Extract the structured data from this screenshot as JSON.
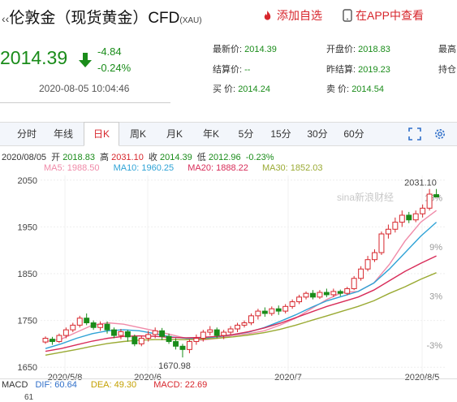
{
  "title": {
    "name": "伦敦金（现货黄金）CFD",
    "code": "(XAU)"
  },
  "actions": {
    "add_watch": "添加自选",
    "app_view": "在APP中查看"
  },
  "quote": {
    "price": "2014.39",
    "change": "-4.84",
    "change_pct": "-0.24%",
    "time": "2020-08-05 10:04:46"
  },
  "fields": {
    "latest_label": "最新价:",
    "latest_value": "2014.39",
    "open_label": "开盘价:",
    "open_value": "2018.83",
    "high_label": "最高",
    "settle_label": "结算价:",
    "settle_value": "--",
    "prev_settle_label": "昨结算:",
    "prev_settle_value": "2019.23",
    "hold_label": "持仓",
    "buy_label": "买  价:",
    "buy_value": "2014.24",
    "sell_label": "卖  价:",
    "sell_value": "2014.54"
  },
  "tabs": [
    "分时",
    "年线",
    "日K",
    "周K",
    "月K",
    "年K",
    "5分",
    "15分",
    "30分",
    "60分"
  ],
  "active_tab": "日K",
  "ohlc": {
    "date": "2020/08/05",
    "open_label": "开",
    "open": "2018.83",
    "high_label": "高",
    "high": "2031.10",
    "close_label": "收",
    "close": "2014.39",
    "low_label": "低",
    "low": "2012.96",
    "change": "-0.23%"
  },
  "ma": {
    "ma5": "MA5: 1988.50",
    "ma10": "MA10: 1960.25",
    "ma20": "MA20: 1888.22",
    "ma30": "MA30: 1852.03"
  },
  "watermark": "sina新浪财经",
  "macd": {
    "label": "MACD",
    "dif": "DIF: 60.64",
    "dea": "DEA: 49.30",
    "macd": "MACD: 22.69",
    "bottom_label": "61"
  },
  "colors": {
    "up": "#d7262c",
    "down": "#1a8c1a",
    "ma5": "#f08aa8",
    "ma10": "#2fa3d6",
    "ma20": "#d82c59",
    "ma30": "#9aaa33"
  },
  "chart_data": {
    "type": "candlestick",
    "y_ticks": [
      "2050",
      "1950",
      "1850",
      "1750",
      "1650"
    ],
    "y_range": [
      1640,
      2060
    ],
    "pct_ticks": [
      "15%",
      "9%",
      "3%",
      "-3%"
    ],
    "x_labels": [
      "2020/5/8",
      "2020/6",
      "2020/7",
      "2020/8/5"
    ],
    "annotations": {
      "high": "2031.10",
      "low": "1670.98"
    },
    "candles": [
      [
        1704,
        1712,
        1700,
        1716
      ],
      [
        1710,
        1705,
        1698,
        1715
      ],
      [
        1705,
        1718,
        1702,
        1722
      ],
      [
        1718,
        1730,
        1712,
        1735
      ],
      [
        1730,
        1740,
        1725,
        1745
      ],
      [
        1740,
        1755,
        1735,
        1760
      ],
      [
        1755,
        1745,
        1740,
        1765
      ],
      [
        1745,
        1735,
        1730,
        1750
      ],
      [
        1735,
        1742,
        1728,
        1748
      ],
      [
        1742,
        1730,
        1722,
        1748
      ],
      [
        1730,
        1718,
        1712,
        1735
      ],
      [
        1718,
        1726,
        1710,
        1732
      ],
      [
        1726,
        1715,
        1705,
        1730
      ],
      [
        1715,
        1700,
        1695,
        1720
      ],
      [
        1700,
        1712,
        1695,
        1718
      ],
      [
        1712,
        1720,
        1705,
        1728
      ],
      [
        1720,
        1728,
        1712,
        1735
      ],
      [
        1728,
        1716,
        1708,
        1734
      ],
      [
        1716,
        1705,
        1700,
        1722
      ],
      [
        1705,
        1695,
        1688,
        1712
      ],
      [
        1695,
        1688,
        1671,
        1700
      ],
      [
        1688,
        1705,
        1680,
        1710
      ],
      [
        1705,
        1712,
        1698,
        1720
      ],
      [
        1712,
        1725,
        1705,
        1730
      ],
      [
        1725,
        1730,
        1718,
        1738
      ],
      [
        1730,
        1718,
        1712,
        1735
      ],
      [
        1718,
        1725,
        1710,
        1730
      ],
      [
        1725,
        1732,
        1720,
        1738
      ],
      [
        1732,
        1740,
        1725,
        1745
      ],
      [
        1740,
        1745,
        1735,
        1750
      ],
      [
        1745,
        1760,
        1740,
        1765
      ],
      [
        1760,
        1770,
        1752,
        1775
      ],
      [
        1770,
        1765,
        1758,
        1778
      ],
      [
        1765,
        1775,
        1760,
        1780
      ],
      [
        1775,
        1770,
        1762,
        1782
      ],
      [
        1770,
        1780,
        1765,
        1785
      ],
      [
        1780,
        1790,
        1775,
        1795
      ],
      [
        1790,
        1800,
        1785,
        1805
      ],
      [
        1800,
        1808,
        1795,
        1812
      ],
      [
        1808,
        1800,
        1795,
        1815
      ],
      [
        1800,
        1810,
        1796,
        1815
      ],
      [
        1810,
        1805,
        1800,
        1818
      ],
      [
        1805,
        1812,
        1800,
        1818
      ],
      [
        1812,
        1808,
        1802,
        1816
      ],
      [
        1808,
        1818,
        1804,
        1822
      ],
      [
        1818,
        1840,
        1815,
        1845
      ],
      [
        1840,
        1860,
        1835,
        1866
      ],
      [
        1860,
        1880,
        1855,
        1888
      ],
      [
        1880,
        1895,
        1875,
        1902
      ],
      [
        1895,
        1935,
        1890,
        1940
      ],
      [
        1935,
        1945,
        1925,
        1955
      ],
      [
        1945,
        1960,
        1938,
        1970
      ],
      [
        1960,
        1975,
        1950,
        1985
      ],
      [
        1975,
        1965,
        1958,
        1982
      ],
      [
        1965,
        1978,
        1960,
        1985
      ],
      [
        1978,
        1990,
        1970,
        1998
      ],
      [
        1990,
        2020,
        1985,
        2031
      ],
      [
        2019,
        2014,
        2013,
        2031
      ]
    ],
    "ma_lines": {
      "ma5": [
        1705,
        1710,
        1725,
        1740,
        1745,
        1742,
        1735,
        1728,
        1720,
        1712,
        1708,
        1712,
        1718,
        1722,
        1728,
        1740,
        1755,
        1775,
        1795,
        1810,
        1812,
        1830,
        1870,
        1920,
        1960,
        1985
      ],
      "ma10": [
        1690,
        1700,
        1712,
        1722,
        1728,
        1730,
        1728,
        1722,
        1715,
        1712,
        1712,
        1715,
        1720,
        1725,
        1735,
        1748,
        1762,
        1778,
        1792,
        1802,
        1812,
        1830,
        1860,
        1895,
        1930,
        1960
      ],
      "ma20": [
        1684,
        1690,
        1698,
        1706,
        1712,
        1716,
        1717,
        1716,
        1714,
        1713,
        1714,
        1716,
        1720,
        1726,
        1734,
        1744,
        1756,
        1768,
        1780,
        1790,
        1800,
        1815,
        1835,
        1855,
        1872,
        1888
      ],
      "ma30": [
        1676,
        1682,
        1688,
        1695,
        1701,
        1705,
        1708,
        1709,
        1709,
        1709,
        1710,
        1712,
        1715,
        1719,
        1724,
        1731,
        1740,
        1750,
        1760,
        1770,
        1780,
        1792,
        1808,
        1822,
        1838,
        1852
      ]
    }
  }
}
